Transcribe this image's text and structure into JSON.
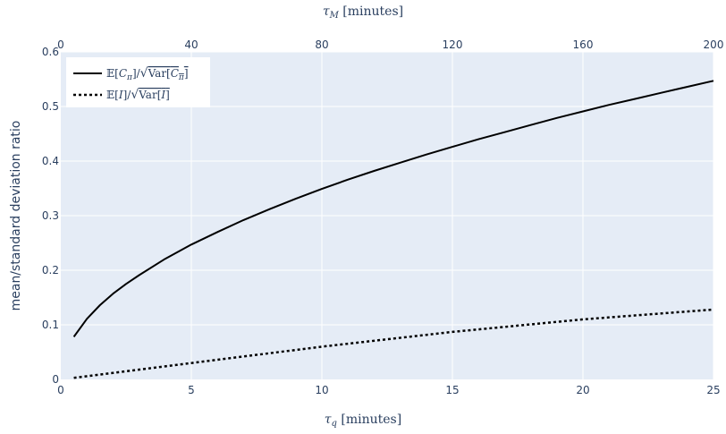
{
  "chart_data": {
    "type": "line",
    "xlabel": "τ_q [minutes]",
    "xlabel_top": "τ_M [minutes]",
    "ylabel": "mean/standard deviation ratio",
    "xlim": [
      0,
      25
    ],
    "x2lim": [
      0,
      200
    ],
    "ylim": [
      0,
      0.6
    ],
    "x_ticks": [
      0,
      5,
      10,
      15,
      20,
      25
    ],
    "x2_ticks": [
      0,
      40,
      80,
      120,
      160,
      200
    ],
    "y_ticks": [
      0,
      0.1,
      0.2,
      0.3,
      0.4,
      0.5,
      0.6
    ],
    "grid": true,
    "legend_position": "top-left",
    "series": [
      {
        "name": "𝔼[C_π]/√Var[C_π]",
        "line_style": "solid",
        "color": "#000000",
        "x": [
          0.5,
          1,
          1.5,
          2,
          2.5,
          3,
          4,
          5,
          6,
          7,
          8,
          9,
          10,
          11,
          12,
          13,
          14,
          15,
          16,
          17,
          18,
          19,
          20,
          21,
          22,
          23,
          24,
          25
        ],
        "y": [
          0.078,
          0.111,
          0.136,
          0.157,
          0.175,
          0.191,
          0.221,
          0.247,
          0.27,
          0.292,
          0.312,
          0.331,
          0.349,
          0.366,
          0.382,
          0.397,
          0.412,
          0.426,
          0.44,
          0.453,
          0.466,
          0.479,
          0.491,
          0.503,
          0.514,
          0.525,
          0.536,
          0.547
        ]
      },
      {
        "name": "𝔼[I]/√Var[I]",
        "line_style": "dotted",
        "color": "#000000",
        "x": [
          0.5,
          5,
          10,
          15,
          20,
          25
        ],
        "y": [
          0.003,
          0.03,
          0.06,
          0.087,
          0.11,
          0.128
        ]
      }
    ]
  },
  "colors": {
    "plot_background": "#e5ecf6",
    "grid": "#ffffff",
    "text": "#2a3f5f"
  }
}
